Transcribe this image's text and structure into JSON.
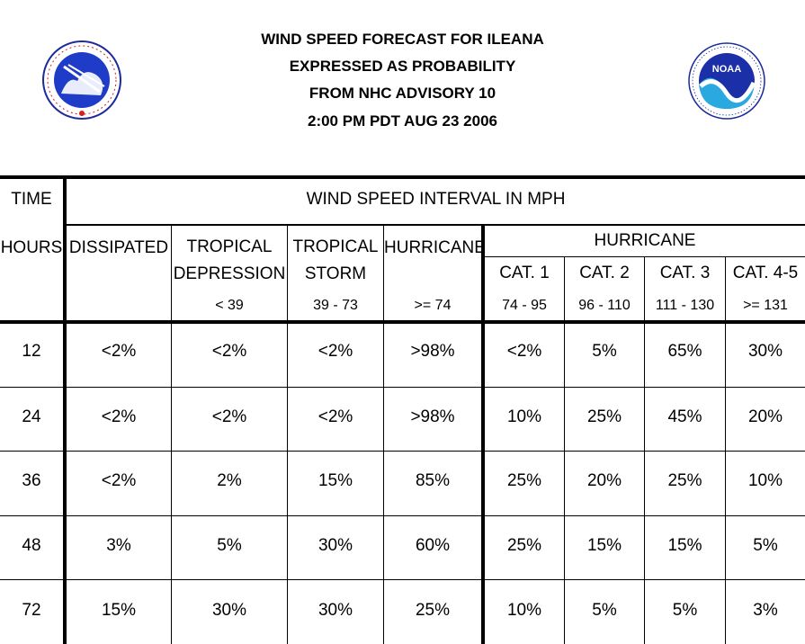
{
  "title": {
    "line1": "WIND SPEED FORECAST FOR ILEANA",
    "line2": "EXPRESSED AS PROBABILITY",
    "line3": "FROM NHC ADVISORY   10",
    "line4": "2:00 PM PDT AUG 23 2006"
  },
  "logos": {
    "left": {
      "icon": "nws-logo",
      "text": "NATIONAL WEATHER SERVICE"
    },
    "right": {
      "icon": "noaa-logo",
      "text": "NOAA"
    }
  },
  "headers": {
    "time": "TIME",
    "interval": "WIND SPEED INTERVAL IN MPH",
    "hours": "HOURS",
    "dissipated": "DISSIPATED",
    "trop_dep_1": "TROPICAL",
    "trop_dep_2": "DEPRESSION",
    "trop_dep_range": "< 39",
    "trop_storm_1": "TROPICAL",
    "trop_storm_2": "STORM",
    "trop_storm_range": "39 - 73",
    "hurricane": "HURRICANE",
    "hurricane_range": ">= 74",
    "hurricane_group": "HURRICANE",
    "cat1": "CAT. 1",
    "cat1_range": "74 - 95",
    "cat2": "CAT. 2",
    "cat2_range": "96 - 110",
    "cat3": "CAT. 3",
    "cat3_range": "111 - 130",
    "cat45": "CAT. 4-5",
    "cat45_range": ">= 131"
  },
  "rows": [
    {
      "hour": "12",
      "vals": [
        "<2%",
        "<2%",
        "<2%",
        ">98%",
        "<2%",
        "5%",
        "65%",
        "30%"
      ]
    },
    {
      "hour": "24",
      "vals": [
        "<2%",
        "<2%",
        "<2%",
        ">98%",
        "10%",
        "25%",
        "45%",
        "20%"
      ]
    },
    {
      "hour": "36",
      "vals": [
        "<2%",
        "2%",
        "15%",
        "85%",
        "25%",
        "20%",
        "25%",
        "10%"
      ]
    },
    {
      "hour": "48",
      "vals": [
        "3%",
        "5%",
        "30%",
        "60%",
        "25%",
        "15%",
        "15%",
        "5%"
      ]
    },
    {
      "hour": "72",
      "vals": [
        "15%",
        "30%",
        "30%",
        "25%",
        "10%",
        "5%",
        "5%",
        "3%"
      ]
    }
  ]
}
